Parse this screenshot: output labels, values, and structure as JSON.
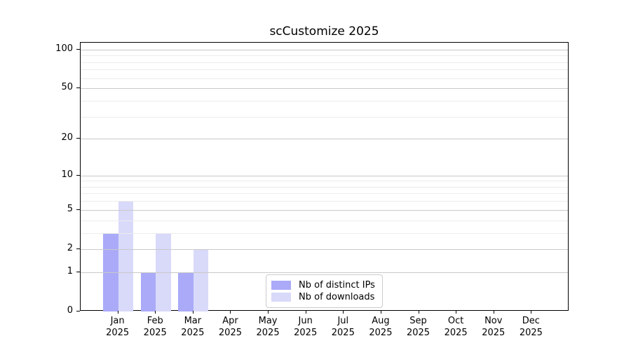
{
  "chart_data": {
    "type": "bar",
    "title": "scCustomize 2025",
    "categories": [
      "Jan 2025",
      "Feb 2025",
      "Mar 2025",
      "Apr 2025",
      "May 2025",
      "Jun 2025",
      "Jul 2025",
      "Aug 2025",
      "Sep 2025",
      "Oct 2025",
      "Nov 2025",
      "Dec 2025"
    ],
    "series": [
      {
        "name": "Nb of distinct IPs",
        "color": "#aaaaf8",
        "values": [
          3,
          1,
          1,
          0,
          0,
          0,
          0,
          0,
          0,
          0,
          0,
          0
        ]
      },
      {
        "name": "Nb of downloads",
        "color": "#d9d9fa",
        "values": [
          6,
          3,
          2,
          0,
          0,
          0,
          0,
          0,
          0,
          0,
          0,
          0
        ]
      }
    ],
    "xlabel": "",
    "ylabel": "",
    "yscale": "log1p",
    "yticks": [
      0,
      1,
      2,
      5,
      10,
      20,
      50,
      100
    ],
    "yticks_minor": [
      3,
      4,
      6,
      7,
      8,
      9,
      30,
      40,
      60,
      70,
      80,
      90
    ],
    "ylim": [
      0,
      113
    ],
    "grid": true,
    "legend_position": "inside-bottom-center",
    "colors": {
      "axis": "#000000",
      "grid_major": "#c9c9c9",
      "grid_minor": "#ececec",
      "background": "#ffffff"
    }
  }
}
